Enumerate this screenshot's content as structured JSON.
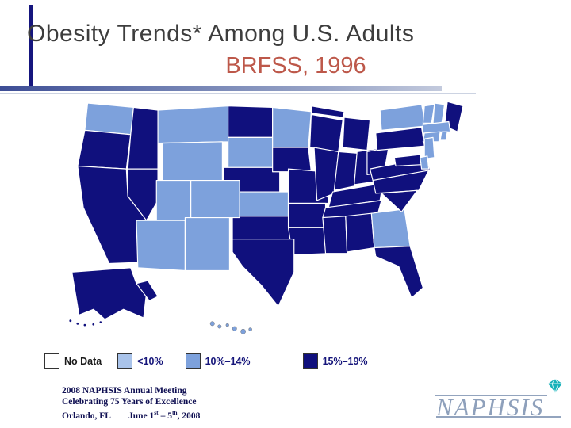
{
  "slide": {
    "title_line1": "Obesity Trends* Among U.S. Adults",
    "title_line2": "BRFSS, 1996"
  },
  "footer": {
    "line1": "2008 NAPHSIS Annual Meeting",
    "line2": "Celebrating 75 Years of Excellence",
    "line3_city": "Orlando, FL",
    "line3_date_prefix": "June 1",
    "line3_sup1": "st",
    "line3_mid": " – 5",
    "line3_sup2": "th",
    "line3_suffix": ", 2008"
  },
  "logo": {
    "text": "NAPHSIS",
    "diamond_color": "#18b1b9"
  },
  "chart_data": {
    "type": "choropleth",
    "title": "Obesity Trends* Among U.S. Adults",
    "subtitle": "BRFSS, 1996",
    "year": 1996,
    "source": "BRFSS",
    "region_type": "US states",
    "legend_position": "bottom",
    "legend": [
      {
        "label": "No Data",
        "color": "#ffffff",
        "states": []
      },
      {
        "label": "<10%",
        "color": "#a9c3ea",
        "states": []
      },
      {
        "label": "10%–14%",
        "color": "#7da1dc",
        "states": [
          "AZ",
          "CO",
          "CT",
          "DE",
          "GA",
          "HI",
          "KS",
          "MA",
          "MN",
          "MT",
          "NH",
          "NJ",
          "NM",
          "NY",
          "RI",
          "SD",
          "UT",
          "VT",
          "WA",
          "WY"
        ]
      },
      {
        "label": "15%–19%",
        "color": "#10107d",
        "states": [
          "AL",
          "AK",
          "AR",
          "CA",
          "FL",
          "ID",
          "IL",
          "IN",
          "IA",
          "KY",
          "LA",
          "ME",
          "MD",
          "MI",
          "MO",
          "MS",
          "NC",
          "ND",
          "NE",
          "NV",
          "OH",
          "OK",
          "OR",
          "PA",
          "SC",
          "TN",
          "TX",
          "VA",
          "WV",
          "WI"
        ]
      }
    ]
  }
}
